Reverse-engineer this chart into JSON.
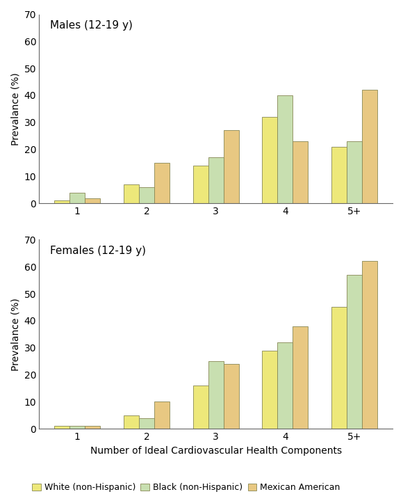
{
  "males": {
    "title": "Males (12-19 y)",
    "white": [
      1,
      7,
      14,
      32,
      21
    ],
    "black": [
      4,
      6,
      17,
      40,
      23
    ],
    "mexican": [
      2,
      15,
      27,
      23,
      42
    ]
  },
  "females": {
    "title": "Females (12-19 y)",
    "white": [
      1,
      5,
      16,
      29,
      45
    ],
    "black": [
      1,
      4,
      25,
      32,
      57
    ],
    "mexican": [
      1,
      10,
      24,
      38,
      62
    ]
  },
  "categories": [
    "1",
    "2",
    "3",
    "4",
    "5+"
  ],
  "ylabel": "Prevalance (%)",
  "xlabel": "Number of Ideal Cardiovascular Health Components",
  "ylim": [
    0,
    70
  ],
  "yticks": [
    0,
    10,
    20,
    30,
    40,
    50,
    60,
    70
  ],
  "color_white": "#EDE87A",
  "color_black": "#C8DFB0",
  "color_mexican": "#E8C882",
  "legend_labels": [
    "White (non-Hispanic)",
    "Black (non-Hispanic)",
    "Mexican American"
  ],
  "bar_width": 0.22,
  "edge_color": "#888855"
}
